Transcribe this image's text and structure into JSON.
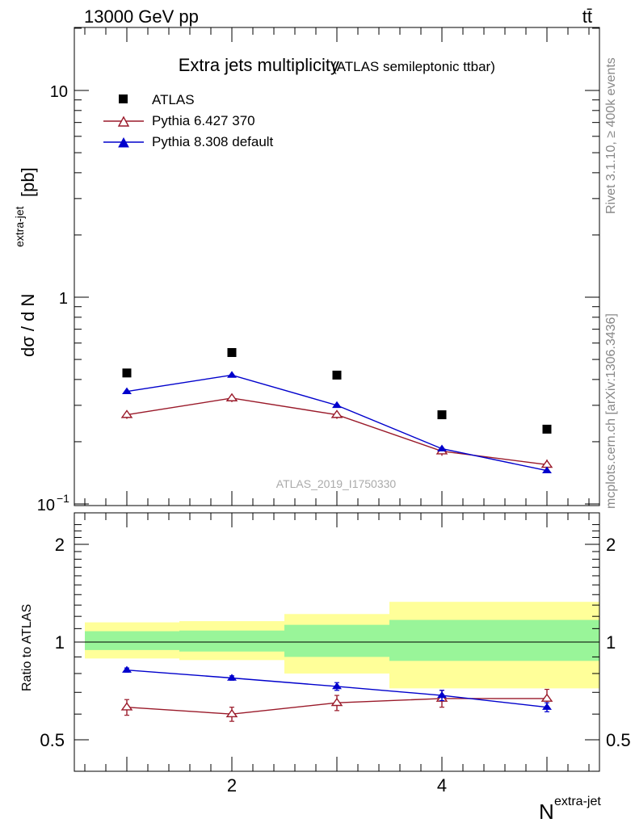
{
  "header": {
    "process": "13000 GeV pp",
    "channel": "tt̄",
    "rivet_label": "Rivet 3.1.10, ≥ 400k events",
    "mcplots_label": "mcplots.cern.ch [arXiv:1306.3436]",
    "analysis_id": "ATLAS_2019_I1750330"
  },
  "colors": {
    "atlas": "#000000",
    "pythia6": "#9a1a2a",
    "pythia8": "#0000cc",
    "band_inner": "#99f599",
    "band_outer": "#ffff99"
  },
  "chart_data": [
    {
      "type": "scatter",
      "title": "Extra jets multiplicity",
      "subtitle": "(ATLAS semileptonic ttbar)",
      "ylabel_main": "dσ / d N",
      "ylabel_sup": "extra-jet",
      "ylabel_unit": "[pb]",
      "xlim": [
        0.5,
        5.5
      ],
      "ylim": [
        0.1,
        20
      ],
      "yscale": "log",
      "yticks": [
        {
          "value": 0.1,
          "label": "10",
          "sup": "−1"
        },
        {
          "value": 1,
          "label": "1",
          "sup": ""
        },
        {
          "value": 10,
          "label": "10",
          "sup": ""
        }
      ],
      "legend_position": "top-left",
      "series": [
        {
          "name": "ATLAS",
          "marker": "square",
          "x": [
            1,
            2,
            3,
            4,
            5
          ],
          "y": [
            0.43,
            0.54,
            0.42,
            0.27,
            0.23
          ]
        },
        {
          "name": "Pythia 6.427 370",
          "marker": "open-triangle",
          "x": [
            1,
            2,
            3,
            4,
            5
          ],
          "y": [
            0.27,
            0.325,
            0.27,
            0.18,
            0.155
          ],
          "yerr": [
            0.012,
            0.014,
            0.012,
            0.009,
            0.009
          ]
        },
        {
          "name": "Pythia 8.308 default",
          "marker": "filled-triangle",
          "x": [
            1,
            2,
            3,
            4,
            5
          ],
          "y": [
            0.35,
            0.42,
            0.3,
            0.185,
            0.145
          ]
        }
      ]
    },
    {
      "type": "line",
      "ylabel": "Ratio to ATLAS",
      "xlabel_main": "N",
      "xlabel_sup": "extra-jet",
      "xlim": [
        0.5,
        5.5
      ],
      "ylim": [
        0.4,
        2.4
      ],
      "xticks": [
        2,
        4
      ],
      "yticks": [
        0.5,
        1,
        2
      ],
      "bands": [
        {
          "x0": 0.6,
          "x1": 1.5,
          "inner": [
            0.945,
            1.08
          ],
          "outer": [
            0.89,
            1.15
          ]
        },
        {
          "x0": 1.5,
          "x1": 2.5,
          "inner": [
            0.935,
            1.085
          ],
          "outer": [
            0.88,
            1.16
          ]
        },
        {
          "x0": 2.5,
          "x1": 3.5,
          "inner": [
            0.9,
            1.13
          ],
          "outer": [
            0.8,
            1.22
          ]
        },
        {
          "x0": 3.5,
          "x1": 4.5,
          "inner": [
            0.875,
            1.17
          ],
          "outer": [
            0.72,
            1.33
          ]
        },
        {
          "x0": 4.5,
          "x1": 5.5,
          "inner": [
            0.875,
            1.17
          ],
          "outer": [
            0.72,
            1.33
          ]
        }
      ],
      "series": [
        {
          "name": "Pythia 6.427 370",
          "marker": "open-triangle",
          "x": [
            1,
            2,
            3,
            4,
            5
          ],
          "y": [
            0.63,
            0.6,
            0.65,
            0.67,
            0.67
          ],
          "yerr": [
            0.035,
            0.03,
            0.035,
            0.04,
            0.045
          ]
        },
        {
          "name": "Pythia 8.308 default",
          "marker": "filled-triangle",
          "x": [
            1,
            2,
            3,
            4,
            5
          ],
          "y": [
            0.82,
            0.775,
            0.73,
            0.685,
            0.63
          ],
          "yerr": [
            0.012,
            0.012,
            0.02,
            0.025,
            0.02
          ]
        }
      ]
    }
  ]
}
